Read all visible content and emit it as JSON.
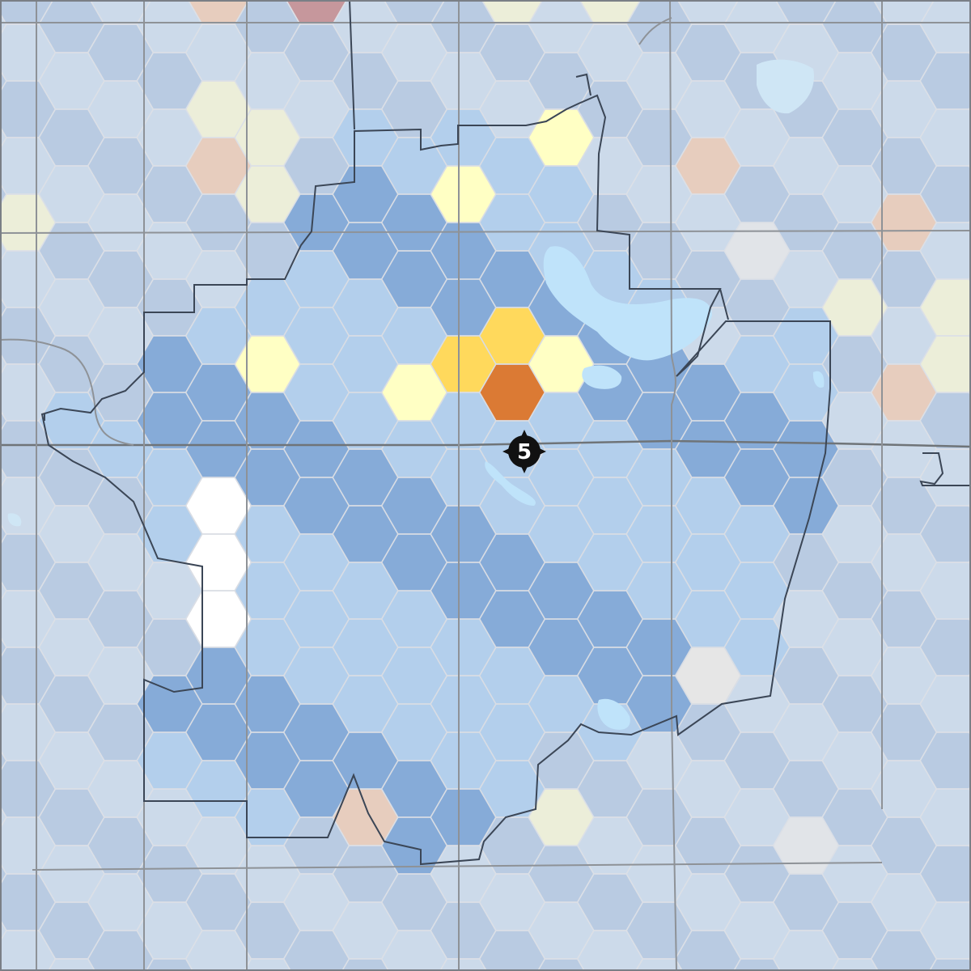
{
  "map": {
    "station": {
      "label": "5",
      "icon": "fire-station-maltese-cross-icon"
    },
    "palette": {
      "white": "#ffffff",
      "light-blue": "#b3cfec",
      "mid-blue": "#86abd8",
      "pale-yellow": "#ffffc4",
      "yellow": "#ffd95c",
      "orange": "#db7a34",
      "dark-red": "#a63033",
      "peach": "#f2b184",
      "gray": "#e6e6e6"
    },
    "legend": []
  }
}
